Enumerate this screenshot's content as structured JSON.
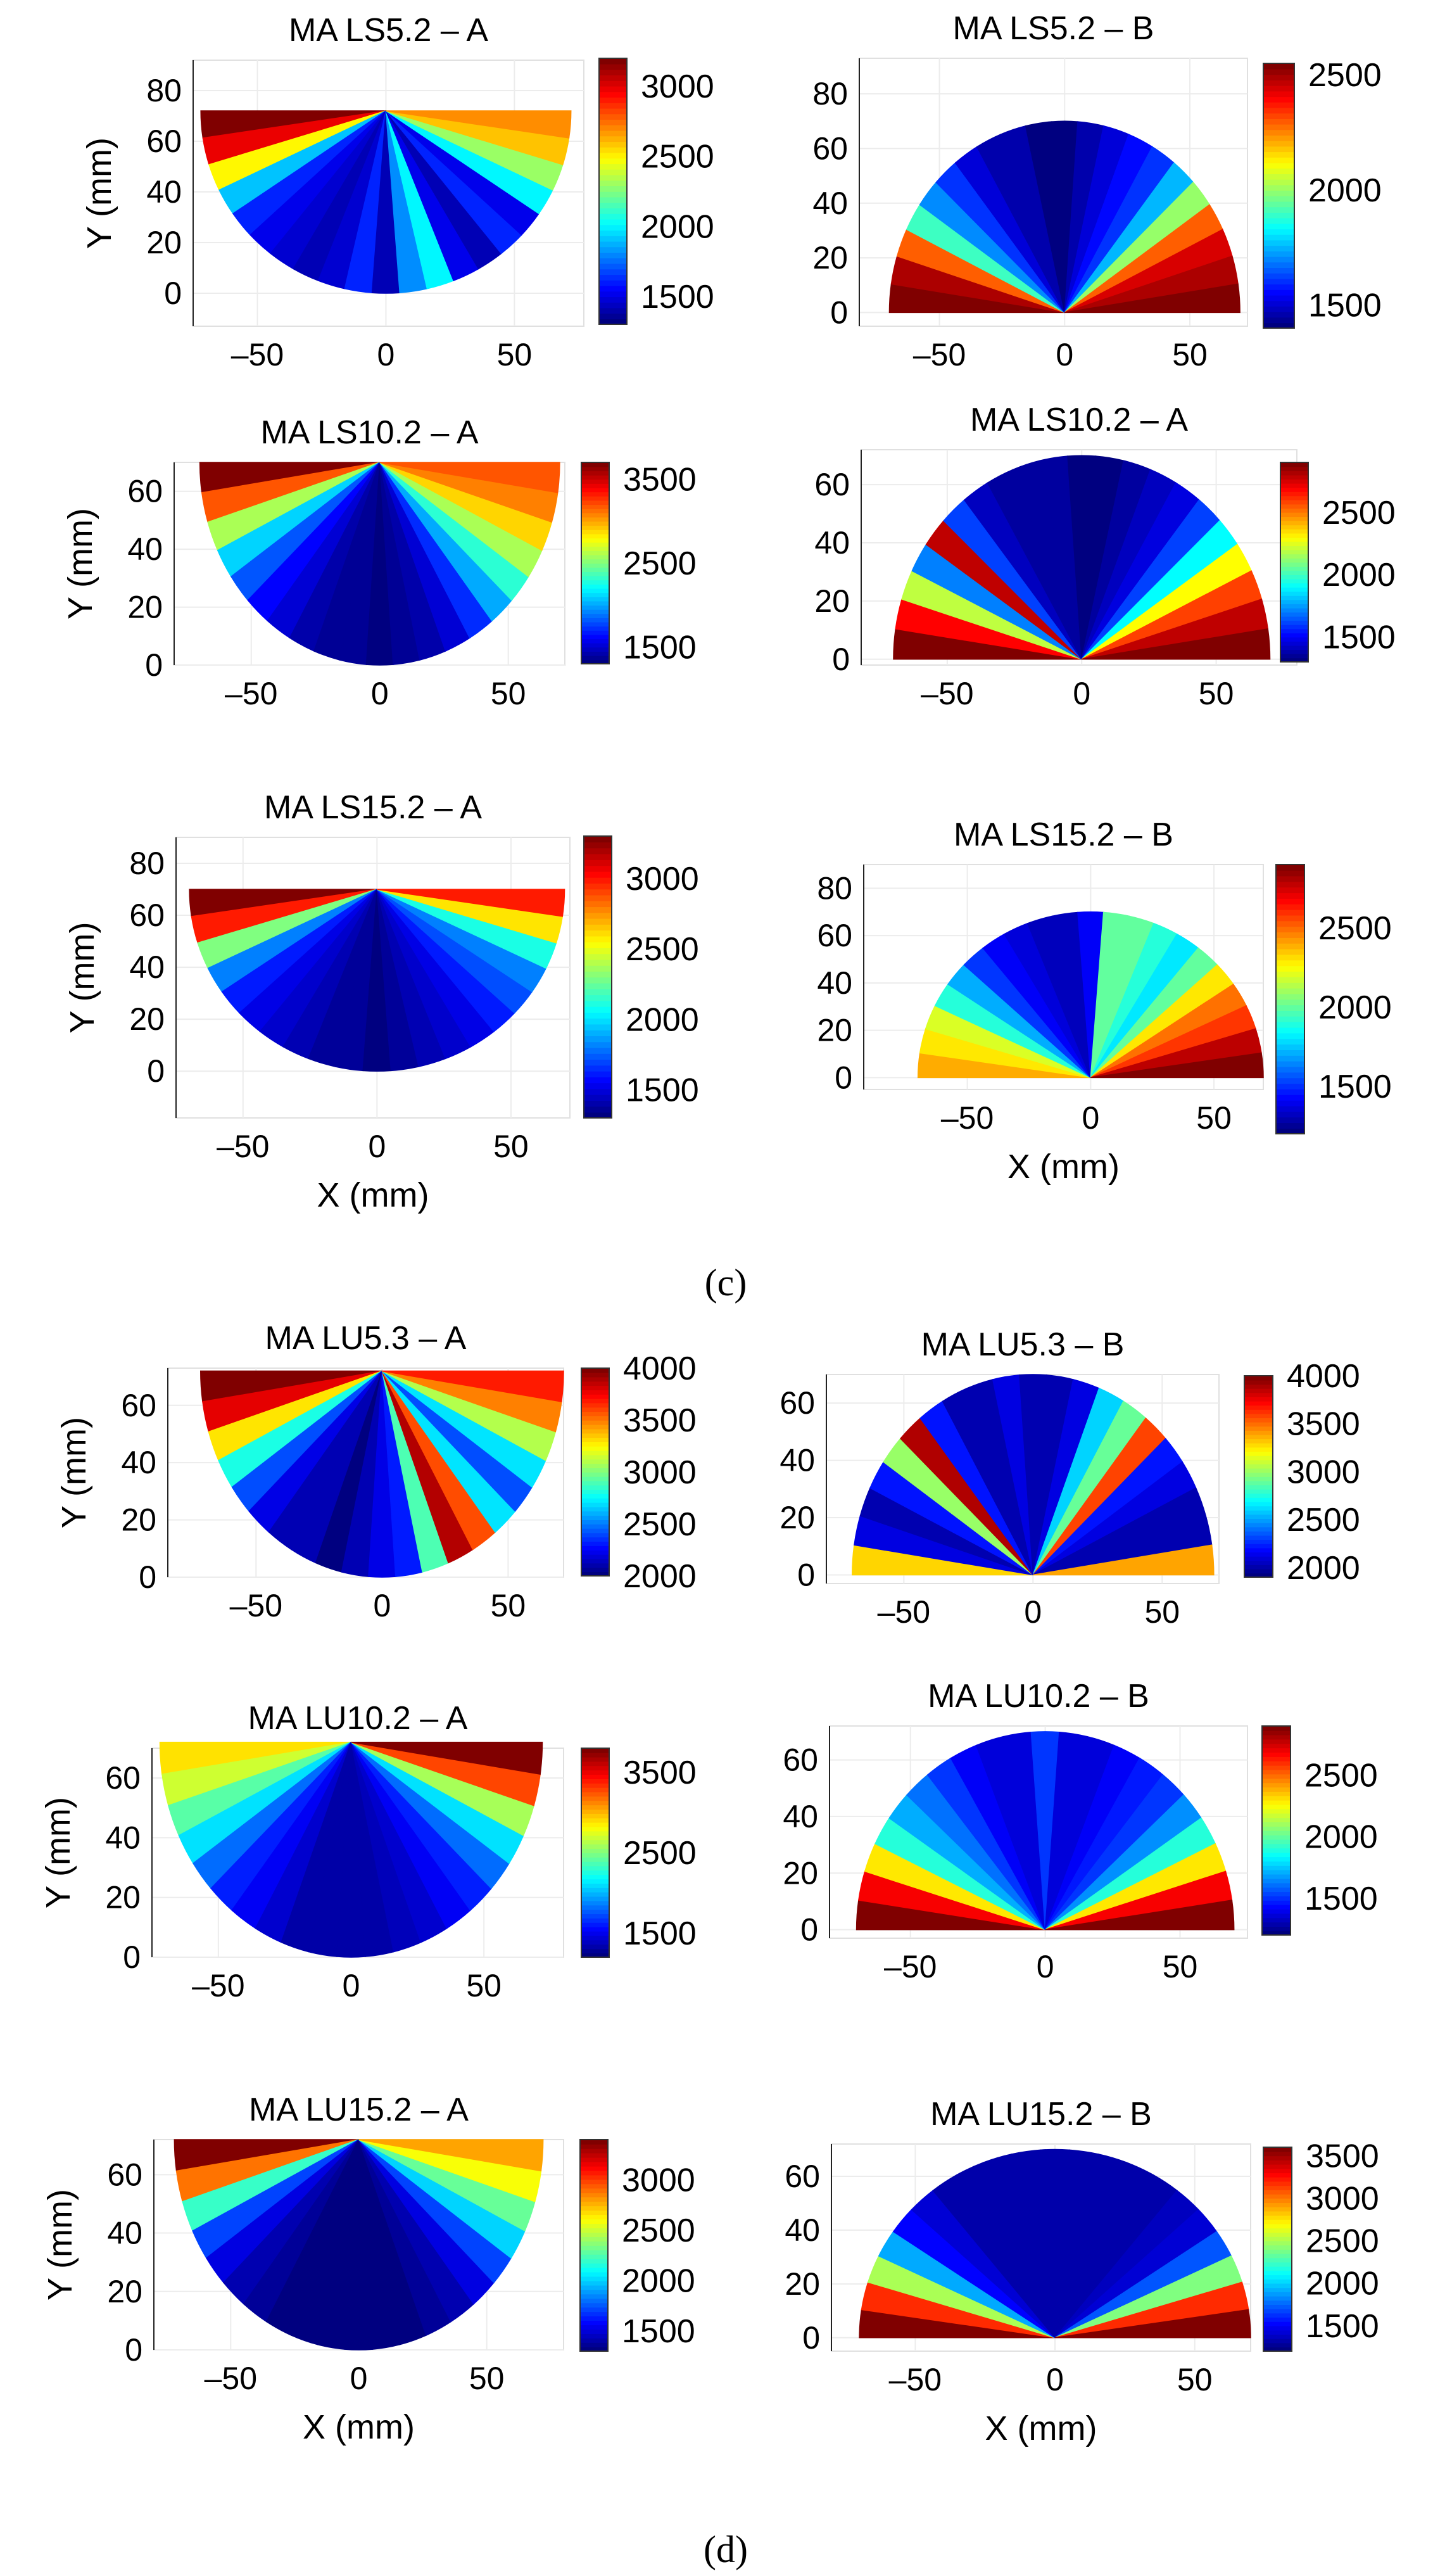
{
  "figure": {
    "section_labels": [
      "(c)",
      "(d)"
    ]
  },
  "chart_data": [
    {
      "type": "heatmap",
      "title": "MA LS5.2 – A",
      "xlabel": "",
      "ylabel": "Y (mm)",
      "x_ticks": [
        -50,
        0,
        50
      ],
      "y_ticks": [
        0,
        20,
        40,
        60,
        80
      ],
      "colorbar_ticks": [
        1500,
        2000,
        2500,
        3000
      ],
      "colorbar_range": [
        1300,
        3200
      ],
      "shape": "semicircle-down",
      "radius_mm": 72,
      "sector_values": [
        3200,
        3000,
        2500,
        1900,
        1600,
        1500,
        1450,
        1400,
        1450,
        1600,
        1400,
        1800,
        2000,
        1500,
        1400,
        1600,
        1500,
        2000,
        2300,
        2600,
        2700
      ]
    },
    {
      "type": "heatmap",
      "title": "MA LS5.2 – B",
      "xlabel": "",
      "ylabel": "",
      "x_ticks": [
        -50,
        0,
        50
      ],
      "y_ticks": [
        0,
        20,
        40,
        60,
        80
      ],
      "colorbar_ticks": [
        1500,
        2000,
        2500
      ],
      "colorbar_range": [
        1400,
        2550
      ],
      "shape": "semicircle-up",
      "radius_mm": 70,
      "sector_values": [
        2550,
        2500,
        2300,
        1900,
        1700,
        1600,
        1500,
        1450,
        1450,
        1400,
        1400,
        1450,
        1500,
        1550,
        1600,
        1750,
        2000,
        2300,
        2450,
        2500,
        2550
      ]
    },
    {
      "type": "heatmap",
      "title": "MA LS10.2 – A",
      "xlabel": "",
      "ylabel": "Y (mm)",
      "x_ticks": [
        -50,
        0,
        50
      ],
      "y_ticks": [
        0,
        20,
        40,
        60
      ],
      "colorbar_ticks": [
        1500,
        2500,
        3500
      ],
      "colorbar_range": [
        1300,
        3700
      ],
      "shape": "semicircle-down",
      "radius_mm": 70,
      "sector_values": [
        3700,
        3200,
        2600,
        2100,
        1800,
        1600,
        1500,
        1400,
        1350,
        1350,
        1300,
        1350,
        1400,
        1500,
        1700,
        2000,
        2300,
        2600,
        2900,
        3100,
        3200
      ]
    },
    {
      "type": "heatmap",
      "title": "MA LS10.2 – A",
      "xlabel": "",
      "ylabel": "",
      "x_ticks": [
        -50,
        0,
        50
      ],
      "y_ticks": [
        0,
        20,
        40,
        60
      ],
      "colorbar_ticks": [
        1500,
        2000,
        2500
      ],
      "colorbar_range": [
        1300,
        2900
      ],
      "shape": "semicircle-up",
      "radius_mm": 70,
      "sector_values": [
        2900,
        2700,
        2200,
        1700,
        2800,
        1600,
        1400,
        1350,
        1350,
        1350,
        1300,
        1300,
        1350,
        1400,
        1450,
        1600,
        1900,
        2300,
        2600,
        2800,
        2900
      ]
    },
    {
      "type": "heatmap",
      "title": "MA LS15.2 – A",
      "xlabel": "X (mm)",
      "ylabel": "Y (mm)",
      "x_ticks": [
        -50,
        0,
        50
      ],
      "y_ticks": [
        0,
        20,
        40,
        60,
        80
      ],
      "colorbar_ticks": [
        1500,
        2000,
        2500,
        3000
      ],
      "colorbar_range": [
        1300,
        3300
      ],
      "shape": "semicircle-down",
      "radius_mm": 70,
      "sector_values": [
        3300,
        3000,
        2300,
        1800,
        1600,
        1500,
        1450,
        1400,
        1350,
        1350,
        1300,
        1350,
        1400,
        1450,
        1500,
        1600,
        1700,
        1800,
        2100,
        2600,
        3000
      ]
    },
    {
      "type": "heatmap",
      "title": "MA LS15.2 – B",
      "xlabel": "X (mm)",
      "ylabel": "",
      "x_ticks": [
        -50,
        0,
        50
      ],
      "y_ticks": [
        0,
        20,
        40,
        60,
        80
      ],
      "colorbar_ticks": [
        1500,
        2000,
        2500
      ],
      "colorbar_range": [
        1200,
        2900
      ],
      "shape": "semicircle-up",
      "radius_mm": 70,
      "sector_values": [
        2400,
        2300,
        2200,
        1900,
        1700,
        1500,
        1400,
        1350,
        1300,
        1300,
        1400,
        2000,
        2000,
        1900,
        1800,
        2000,
        2300,
        2500,
        2600,
        2800,
        2900
      ]
    },
    {
      "type": "heatmap",
      "title": "MA LU5.3 – A",
      "xlabel": "",
      "ylabel": "Y (mm)",
      "x_ticks": [
        -50,
        0,
        50
      ],
      "y_ticks": [
        0,
        20,
        40,
        60
      ],
      "colorbar_ticks": [
        2000,
        2500,
        3000,
        3500,
        4000
      ],
      "colorbar_range": [
        2000,
        4000
      ],
      "shape": "semicircle-down",
      "radius_mm": 72,
      "sector_values": [
        4000,
        3800,
        3300,
        2800,
        2400,
        2200,
        2100,
        2100,
        2000,
        2100,
        2200,
        2300,
        2900,
        3900,
        3600,
        2700,
        2400,
        2700,
        3100,
        3500,
        3700
      ]
    },
    {
      "type": "heatmap",
      "title": "MA LU5.3 – B",
      "xlabel": "",
      "ylabel": "",
      "x_ticks": [
        -50,
        0,
        50
      ],
      "y_ticks": [
        0,
        20,
        40,
        60
      ],
      "colorbar_ticks": [
        2000,
        2500,
        3000,
        3500,
        4000
      ],
      "colorbar_range": [
        1900,
        4000
      ],
      "shape": "semicircle-up",
      "radius_mm": 70,
      "sector_values": [
        3300,
        2100,
        2000,
        2200,
        3000,
        3900,
        2200,
        2000,
        2000,
        2100,
        2000,
        2000,
        2100,
        2600,
        2900,
        3600,
        2200,
        2100,
        2000,
        2000,
        3400
      ]
    },
    {
      "type": "heatmap",
      "title": "MA LU10.2 – A",
      "xlabel": "",
      "ylabel": "Y (mm)",
      "x_ticks": [
        -50,
        0,
        50
      ],
      "y_ticks": [
        0,
        20,
        40,
        60
      ],
      "colorbar_ticks": [
        1500,
        2500,
        3500
      ],
      "colorbar_range": [
        1200,
        3800
      ],
      "shape": "semicircle-down",
      "radius_mm": 72,
      "sector_values": [
        2900,
        2700,
        2400,
        2100,
        1800,
        1600,
        1500,
        1400,
        1300,
        1300,
        1300,
        1300,
        1350,
        1400,
        1500,
        1600,
        1800,
        2100,
        2600,
        3300,
        3800
      ]
    },
    {
      "type": "heatmap",
      "title": "MA LU10.2 – B",
      "xlabel": "",
      "ylabel": "",
      "x_ticks": [
        -50,
        0,
        50
      ],
      "y_ticks": [
        0,
        20,
        40,
        60
      ],
      "colorbar_ticks": [
        1500,
        2000,
        2500
      ],
      "colorbar_range": [
        1200,
        2900
      ],
      "shape": "semicircle-up",
      "radius_mm": 70,
      "sector_values": [
        2900,
        2700,
        2300,
        1900,
        1700,
        1600,
        1500,
        1400,
        1350,
        1350,
        1500,
        1350,
        1350,
        1400,
        1450,
        1500,
        1650,
        1900,
        2300,
        2700,
        2900
      ]
    },
    {
      "type": "heatmap",
      "title": "MA LU15.2 – A",
      "xlabel": "X (mm)",
      "ylabel": "Y (mm)",
      "x_ticks": [
        -50,
        0,
        50
      ],
      "y_ticks": [
        0,
        20,
        40,
        60
      ],
      "colorbar_ticks": [
        1500,
        2000,
        2500,
        3000
      ],
      "colorbar_range": [
        1300,
        3400
      ],
      "shape": "semicircle-down",
      "radius_mm": 72,
      "sector_values": [
        3400,
        2900,
        2200,
        1700,
        1500,
        1400,
        1350,
        1300,
        1300,
        1300,
        1300,
        1300,
        1300,
        1350,
        1400,
        1500,
        1700,
        2000,
        2300,
        2600,
        2800
      ]
    },
    {
      "type": "heatmap",
      "title": "MA LU15.2 – B",
      "xlabel": "X (mm)",
      "ylabel": "",
      "x_ticks": [
        -50,
        0,
        50
      ],
      "y_ticks": [
        0,
        20,
        40,
        60
      ],
      "colorbar_ticks": [
        1500,
        2000,
        2500,
        3000,
        3500
      ],
      "colorbar_range": [
        1200,
        3600
      ],
      "shape": "semicircle-up",
      "radius_mm": 70,
      "sector_values": [
        3600,
        3200,
        2500,
        1900,
        1500,
        1400,
        1300,
        1300,
        1300,
        1300,
        1300,
        1300,
        1300,
        1300,
        1300,
        1350,
        1400,
        1700,
        2400,
        3200,
        3600
      ]
    }
  ]
}
